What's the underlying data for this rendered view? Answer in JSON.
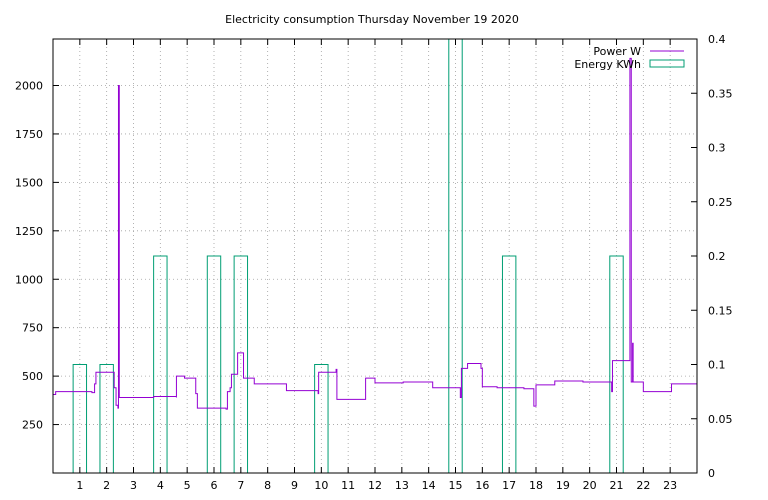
{
  "chart_data": {
    "type": "line",
    "title": "Electricity consumption Thursday November 19 2020",
    "xlabel": "",
    "ylabel": "",
    "x_ticks": [
      1,
      2,
      3,
      4,
      5,
      6,
      7,
      8,
      9,
      10,
      11,
      12,
      13,
      14,
      15,
      16,
      17,
      18,
      19,
      20,
      21,
      22,
      23
    ],
    "xlim": [
      0,
      24
    ],
    "ylim": [
      0,
      2240
    ],
    "y_ticks": [
      250,
      500,
      750,
      1000,
      1250,
      1500,
      1750,
      2000
    ],
    "y2lim": [
      0,
      0.4
    ],
    "y2_ticks": [
      "0",
      "0.05",
      "0.1",
      "0.15",
      "0.2",
      "0.25",
      "0.3",
      "0.35",
      "0.4"
    ],
    "y2_tick_values": [
      0,
      0.05,
      0.1,
      0.15,
      0.2,
      0.25,
      0.3,
      0.35,
      0.4
    ],
    "grid": true,
    "legend_position": "top-right",
    "colors": {
      "power": "#9400d3",
      "energy": "#009e73"
    },
    "series": [
      {
        "name": "Power W",
        "axis": "left",
        "style": "step",
        "points": [
          [
            0,
            405
          ],
          [
            0.1,
            420
          ],
          [
            1.3,
            420
          ],
          [
            1.45,
            415
          ],
          [
            1.55,
            460
          ],
          [
            1.6,
            520
          ],
          [
            2.25,
            520
          ],
          [
            2.28,
            440
          ],
          [
            2.35,
            350
          ],
          [
            2.42,
            335
          ],
          [
            2.44,
            2000
          ],
          [
            2.47,
            390
          ],
          [
            3.7,
            390
          ],
          [
            3.75,
            395
          ],
          [
            4.5,
            395
          ],
          [
            4.6,
            390
          ],
          [
            4.6,
            500
          ],
          [
            4.9,
            490
          ],
          [
            5.3,
            490
          ],
          [
            5.32,
            410
          ],
          [
            5.38,
            335
          ],
          [
            6.4,
            335
          ],
          [
            6.45,
            330
          ],
          [
            6.5,
            420
          ],
          [
            6.6,
            440
          ],
          [
            6.65,
            510
          ],
          [
            6.85,
            510
          ],
          [
            6.88,
            620
          ],
          [
            7.05,
            620
          ],
          [
            7.1,
            490
          ],
          [
            7.45,
            490
          ],
          [
            7.5,
            460
          ],
          [
            8.6,
            460
          ],
          [
            8.7,
            425
          ],
          [
            9.85,
            425
          ],
          [
            9.88,
            410
          ],
          [
            9.9,
            520
          ],
          [
            10.5,
            520
          ],
          [
            10.55,
            535
          ],
          [
            10.58,
            380
          ],
          [
            11.6,
            380
          ],
          [
            11.65,
            490
          ],
          [
            11.95,
            490
          ],
          [
            12.0,
            465
          ],
          [
            13.0,
            465
          ],
          [
            13.05,
            470
          ],
          [
            14.1,
            470
          ],
          [
            14.15,
            440
          ],
          [
            15.15,
            440
          ],
          [
            15.18,
            390
          ],
          [
            15.22,
            540
          ],
          [
            15.4,
            540
          ],
          [
            15.45,
            565
          ],
          [
            15.9,
            565
          ],
          [
            15.95,
            540
          ],
          [
            16.0,
            445
          ],
          [
            16.5,
            445
          ],
          [
            16.55,
            440
          ],
          [
            17.5,
            440
          ],
          [
            17.55,
            435
          ],
          [
            17.9,
            435
          ],
          [
            17.92,
            345
          ],
          [
            18.0,
            350
          ],
          [
            18.0,
            455
          ],
          [
            18.65,
            455
          ],
          [
            18.7,
            475
          ],
          [
            19.7,
            475
          ],
          [
            19.75,
            470
          ],
          [
            20.8,
            470
          ],
          [
            20.82,
            420
          ],
          [
            20.85,
            580
          ],
          [
            21.45,
            580
          ],
          [
            21.5,
            2140
          ],
          [
            21.55,
            470
          ],
          [
            21.6,
            670
          ],
          [
            21.62,
            470
          ],
          [
            21.95,
            470
          ],
          [
            22.0,
            420
          ],
          [
            23.0,
            420
          ],
          [
            23.05,
            460
          ],
          [
            24.0,
            460
          ]
        ]
      },
      {
        "name": "Energy KWh",
        "axis": "right",
        "style": "boxes",
        "bars": [
          {
            "start": 0.75,
            "end": 1.25,
            "value": 0.1
          },
          {
            "start": 1.75,
            "end": 2.25,
            "value": 0.1
          },
          {
            "start": 3.75,
            "end": 4.25,
            "value": 0.2
          },
          {
            "start": 5.75,
            "end": 6.25,
            "value": 0.2
          },
          {
            "start": 6.75,
            "end": 7.25,
            "value": 0.2
          },
          {
            "start": 9.75,
            "end": 10.25,
            "value": 0.1
          },
          {
            "start": 14.75,
            "end": 15.25,
            "value": 0.4
          },
          {
            "start": 16.75,
            "end": 17.25,
            "value": 0.2
          },
          {
            "start": 20.75,
            "end": 21.25,
            "value": 0.2
          }
        ]
      }
    ]
  }
}
